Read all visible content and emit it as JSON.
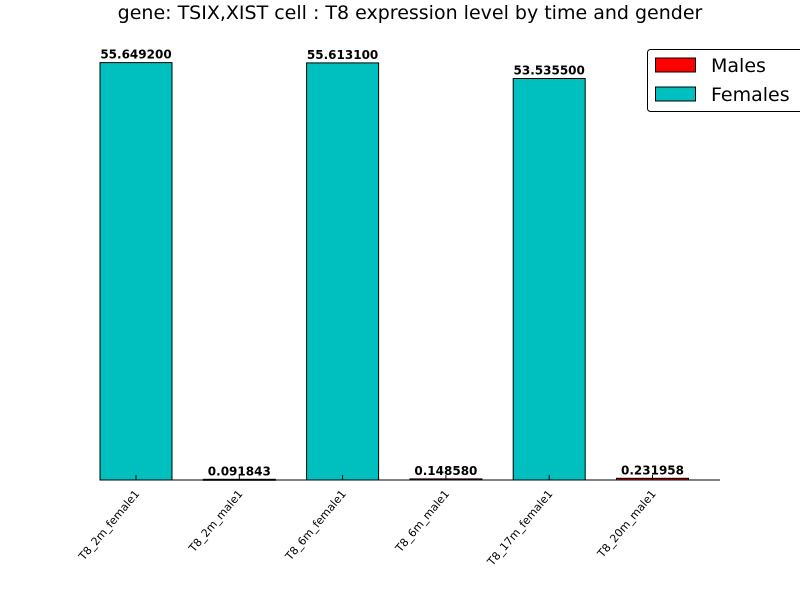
{
  "chart_data": {
    "type": "bar",
    "title": "gene: TSIX,XIST cell : T8 expression level by time and gender",
    "xlabel": "",
    "ylabel": "",
    "ylim": [
      0,
      60
    ],
    "grid": false,
    "legend_position": "top-right",
    "categories": [
      "T8_2m_female1",
      "T8_2m_male1",
      "T8_6m_female1",
      "T8_6m_male1",
      "T8_17m_female1",
      "T8_20m_male1"
    ],
    "series": [
      {
        "name": "Males",
        "color": "#ff0000"
      },
      {
        "name": "Females",
        "color": "#00bfbf"
      }
    ],
    "bars": [
      {
        "category": "T8_2m_female1",
        "series": "Females",
        "value": 55.6492,
        "label": "55.649200"
      },
      {
        "category": "T8_2m_male1",
        "series": "Males",
        "value": 0.091843,
        "label": "0.091843"
      },
      {
        "category": "T8_6m_female1",
        "series": "Females",
        "value": 55.6131,
        "label": "55.613100"
      },
      {
        "category": "T8_6m_male1",
        "series": "Males",
        "value": 0.14858,
        "label": "0.148580"
      },
      {
        "category": "T8_17m_female1",
        "series": "Females",
        "value": 53.5355,
        "label": "53.535500"
      },
      {
        "category": "T8_20m_male1",
        "series": "Males",
        "value": 0.231958,
        "label": "0.231958"
      }
    ]
  }
}
